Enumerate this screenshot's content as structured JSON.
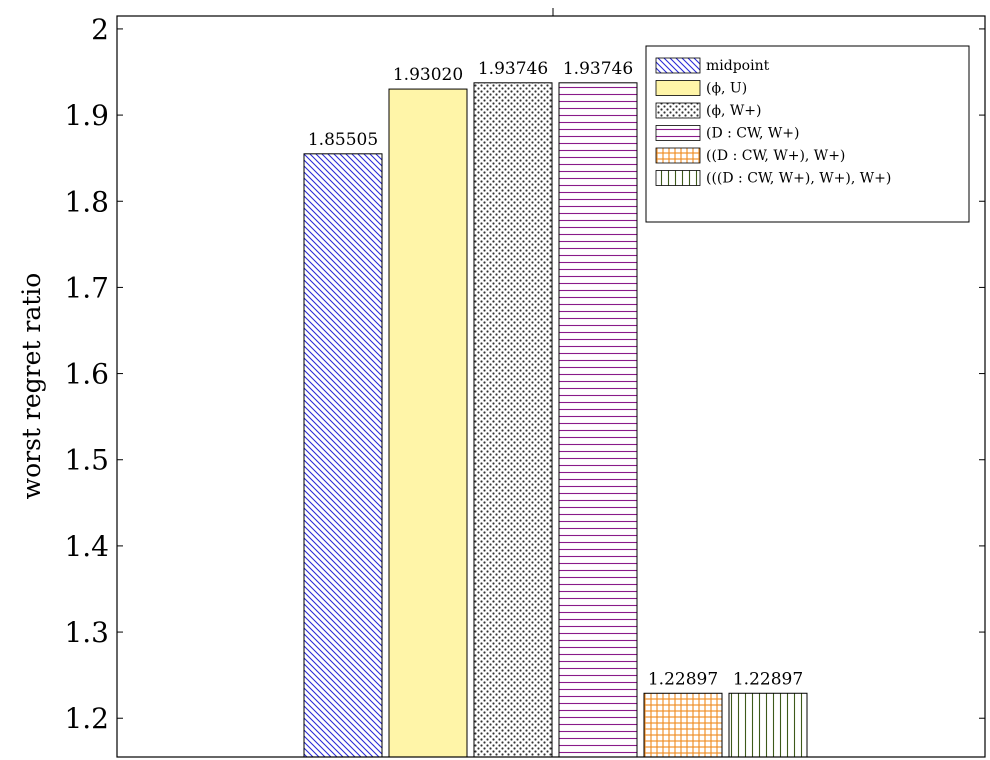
{
  "chart_data": {
    "type": "bar",
    "title": "",
    "xlabel": "",
    "ylabel": "worst regret ratio",
    "ylim": [
      1.155,
      2.015
    ],
    "yticks": [
      1.2,
      1.3,
      1.4,
      1.5,
      1.6,
      1.7,
      1.8,
      1.9,
      2
    ],
    "ytick_labels": [
      "1.2",
      "1.3",
      "1.4",
      "1.5",
      "1.6",
      "1.7",
      "1.8",
      "1.9",
      "2"
    ],
    "grid": false,
    "legend_position": "top-right",
    "series": [
      {
        "name": "midpoint",
        "value": 1.85505,
        "label": "1.85505",
        "color": "#2b2bd6",
        "pattern": "diagonal-lines"
      },
      {
        "name": "(ϕ, U)",
        "value": 1.9302,
        "label": "1.93020",
        "color": "#fff5a8",
        "pattern": "solid"
      },
      {
        "name": "(ϕ, W+)",
        "value": 1.93746,
        "label": "1.93746",
        "color": "#333333",
        "pattern": "dots"
      },
      {
        "name": "(D : CW, W+)",
        "value": 1.93746,
        "label": "1.93746",
        "color": "#8a1a8a",
        "pattern": "horizontal-lines"
      },
      {
        "name": "((D : CW, W+), W+)",
        "value": 1.22897,
        "label": "1.22897",
        "color": "#f08a1c",
        "pattern": "grid"
      },
      {
        "name": "(((D : CW, W+), W+), W+)",
        "value": 1.22897,
        "label": "1.22897",
        "color": "#3d5a1a",
        "pattern": "vertical-lines"
      }
    ]
  }
}
